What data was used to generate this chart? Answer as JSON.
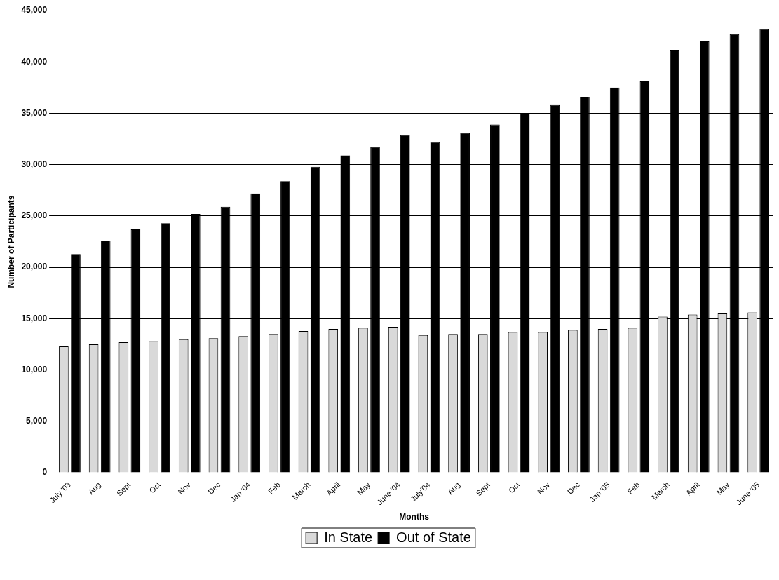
{
  "chart_data": {
    "type": "bar",
    "xlabel": "Months",
    "ylabel": "Number of Participants",
    "categories": [
      "July '03",
      "Aug",
      "Sept",
      "Oct",
      "Nov",
      "Dec",
      "Jan '04",
      "Feb",
      "March",
      "April",
      "May",
      "June '04",
      "July'04",
      "Aug",
      "Sept",
      "Oct",
      "Nov",
      "Dec",
      "Jan '05",
      "Feb",
      "March",
      "April",
      "May",
      "June '05"
    ],
    "series": [
      {
        "name": "In State",
        "color": "#d9d9d9",
        "values": [
          12300,
          12500,
          12700,
          12800,
          13000,
          13100,
          13300,
          13500,
          13800,
          14000,
          14100,
          14200,
          13400,
          13500,
          13500,
          13700,
          13700,
          13900,
          14000,
          14100,
          15200,
          15400,
          15500,
          15600
        ]
      },
      {
        "name": "Out of State",
        "color": "#000000",
        "values": [
          21300,
          22600,
          23700,
          24300,
          25200,
          25900,
          27200,
          28400,
          29800,
          30900,
          31700,
          32900,
          32200,
          33100,
          33900,
          35000,
          35800,
          36600,
          37500,
          38100,
          41100,
          42000,
          42700,
          43200
        ]
      }
    ],
    "ylim": [
      0,
      45000
    ],
    "yticks": [
      0,
      {
        "value": 5000,
        "label": "5,000"
      },
      {
        "value": 10000,
        "label": "10,000"
      },
      {
        "value": 15000,
        "label": "15,000"
      },
      {
        "value": 20000,
        "label": "20,000"
      },
      {
        "value": 25000,
        "label": "25,000"
      },
      {
        "value": 30000,
        "label": "30,000"
      },
      {
        "value": 35000,
        "label": "35,000"
      },
      {
        "value": 40000,
        "label": "40,000"
      },
      {
        "value": 45000,
        "label": "45,000"
      }
    ],
    "grid": "y",
    "legend": "bottom"
  }
}
